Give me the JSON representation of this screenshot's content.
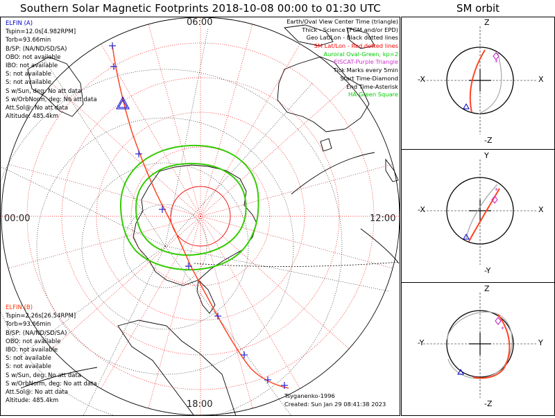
{
  "header": {
    "title": "Southern Solar Magnetic Footprints 2018-10-08 00:00 to 01:30 UTC",
    "sm_orbit_title": "SM orbit"
  },
  "clock_labels": {
    "top": "06:00",
    "left": "00:00",
    "right": "12:00",
    "bottom": "18:00"
  },
  "elfin_a": {
    "name": "ELFIN (A)",
    "lines": [
      "Tspin=12.0s[4.982RPM]",
      "Torb=93.66min",
      "B/SP: (NA/ND/SD/SA)",
      "OBO: not available",
      "IBO: not available",
      "S: not available",
      "S: not available",
      "S w/Sun, deg: No att data",
      "S w/OrbNorm, deg: No att data",
      "Att.Sol@: No att data",
      "Altitude: 485.4km"
    ]
  },
  "elfin_b": {
    "name": "ELFIN (B)",
    "lines": [
      "Tspin=2.26s[26.54RPM]",
      "Torb=93.66min",
      "B/SP: (NA/ND/SD/SA)",
      "OBO: not available",
      "IBO: not available",
      "S: not available",
      "S: not available",
      "S w/Sun, deg: No att data",
      "S w/OrbNorm, deg: No att data",
      "Att.Sol@: No att data",
      "Altitude: 485.4km"
    ]
  },
  "legend": [
    {
      "text": "Earth/Oval View Center Time (triangle)",
      "color": "#000000"
    },
    {
      "text": "Thick - Science (FGM and/or EPD)",
      "color": "#000000"
    },
    {
      "text": "Geo Lat/Lon - Black dotted lines",
      "color": "#000000"
    },
    {
      "text": "SM Lat/Lon - Red dotted lines",
      "color": "#ff0000"
    },
    {
      "text": "Auroral Oval-Green, kp=2",
      "color": "#00cc00"
    },
    {
      "text": "EISCAT-Purple Triangle",
      "color": "#cc33cc"
    },
    {
      "text": "Tick Marks every 5min",
      "color": "#000000"
    },
    {
      "text": "Start Time-Diamond",
      "color": "#000000"
    },
    {
      "text": "End Time-Asterisk",
      "color": "#000000"
    },
    {
      "text": "HA-Green Square",
      "color": "#00cc00"
    }
  ],
  "credits": {
    "model": "Tsyganenko-1996",
    "created": "Created: Sun Jan 29 08:41:38 2023"
  },
  "sm_panels": [
    {
      "top": "Z",
      "bottom": "-Z",
      "left": "-X",
      "right": "X"
    },
    {
      "top": "Y",
      "bottom": "-Y",
      "left": "-X",
      "right": "X"
    },
    {
      "top": "Z",
      "bottom": "-Z",
      "left": "-Y",
      "right": "Y"
    }
  ],
  "colors": {
    "elfin_a": "#0000cc",
    "elfin_b": "#ff3300",
    "track": "#ff4422",
    "oval": "#33cc00",
    "sm_grid": "#ff0000",
    "geo_grid": "#000000"
  }
}
